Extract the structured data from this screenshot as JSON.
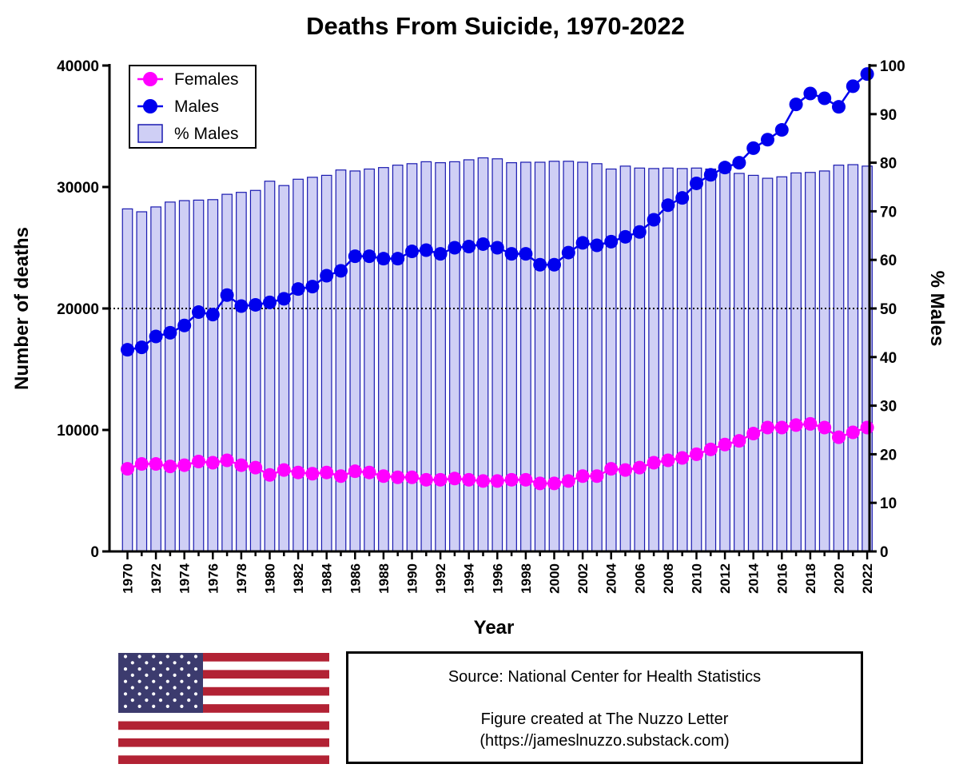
{
  "chart_data": {
    "type": "bar+line",
    "title": "Deaths From Suicide, 1970-2022",
    "xlabel": "Year",
    "ylabel_left": "Number of deaths",
    "ylabel_right": "% Males",
    "ylim_left": [
      0,
      40000
    ],
    "ylim_right": [
      0,
      100
    ],
    "yticks_left": [
      "0",
      "10000",
      "20000",
      "30000",
      "40000"
    ],
    "yticks_right": [
      "0",
      "10",
      "20",
      "30",
      "40",
      "50",
      "60",
      "70",
      "80",
      "90",
      "100"
    ],
    "x": [
      1970,
      1971,
      1972,
      1973,
      1974,
      1975,
      1976,
      1977,
      1978,
      1979,
      1980,
      1981,
      1982,
      1983,
      1984,
      1985,
      1986,
      1987,
      1988,
      1989,
      1990,
      1991,
      1992,
      1993,
      1994,
      1995,
      1996,
      1997,
      1998,
      1999,
      2000,
      2001,
      2002,
      2003,
      2004,
      2005,
      2006,
      2007,
      2008,
      2009,
      2010,
      2011,
      2012,
      2013,
      2014,
      2015,
      2016,
      2017,
      2018,
      2019,
      2020,
      2021,
      2022
    ],
    "xtick_labels": [
      "1970",
      "1972",
      "1974",
      "1976",
      "1978",
      "1980",
      "1982",
      "1984",
      "1986",
      "1988",
      "1990",
      "1992",
      "1994",
      "1996",
      "1998",
      "2000",
      "2002",
      "2004",
      "2006",
      "2008",
      "2010",
      "2012",
      "2014",
      "2016",
      "2018",
      "2020",
      "2022"
    ],
    "reference_line": {
      "axis": "right",
      "value": 50,
      "style": "dotted"
    },
    "series": [
      {
        "name": "Females",
        "type": "line",
        "axis": "left",
        "color": "#ff00ff",
        "values": [
          6800,
          7200,
          7200,
          7000,
          7100,
          7400,
          7300,
          7500,
          7100,
          6900,
          6300,
          6700,
          6500,
          6400,
          6500,
          6200,
          6600,
          6500,
          6200,
          6100,
          6100,
          5900,
          5900,
          6000,
          5900,
          5800,
          5800,
          5900,
          5900,
          5600,
          5600,
          5800,
          6200,
          6200,
          6800,
          6700,
          6900,
          7300,
          7500,
          7700,
          8000,
          8400,
          8800,
          9100,
          9700,
          10200,
          10200,
          10400,
          10500,
          10200,
          9400,
          9800,
          10200
        ]
      },
      {
        "name": "Males",
        "type": "line",
        "axis": "left",
        "color": "#0000ee",
        "values": [
          16600,
          16800,
          17700,
          18000,
          18600,
          19700,
          19500,
          21100,
          20200,
          20300,
          20500,
          20800,
          21600,
          21800,
          22700,
          23100,
          24300,
          24300,
          24100,
          24100,
          24700,
          24800,
          24500,
          25000,
          25100,
          25300,
          25000,
          24500,
          24500,
          23600,
          23600,
          24600,
          25400,
          25200,
          25500,
          25900,
          26300,
          27300,
          28500,
          29100,
          30300,
          31000,
          31600,
          32000,
          33200,
          33900,
          34700,
          36800,
          37700,
          37300,
          36600,
          38300,
          39300
        ]
      },
      {
        "name": "% Males",
        "type": "bar",
        "axis": "right",
        "color": "#cfcff5",
        "edge_color": "#1a1ab0",
        "values": [
          70.5,
          69.9,
          70.9,
          71.9,
          72.2,
          72.3,
          72.4,
          73.5,
          73.9,
          74.3,
          76.2,
          75.3,
          76.6,
          77.0,
          77.4,
          78.5,
          78.3,
          78.7,
          79.0,
          79.5,
          79.8,
          80.2,
          80.0,
          80.2,
          80.6,
          81.0,
          80.8,
          80.0,
          80.1,
          80.1,
          80.3,
          80.3,
          80.1,
          79.8,
          78.7,
          79.3,
          78.9,
          78.8,
          78.9,
          78.8,
          78.9,
          78.7,
          78.5,
          77.8,
          77.4,
          76.8,
          77.1,
          77.9,
          78.0,
          78.3,
          79.5,
          79.6,
          79.3
        ]
      }
    ],
    "legend": {
      "position": "top-left",
      "entries": [
        "Females",
        "Males",
        "% Males"
      ]
    }
  },
  "source": {
    "line1": "Source: National Center for Health Statistics",
    "line2": "Figure created at The Nuzzo Letter",
    "line3": "(https://jameslnuzzo.substack.com)"
  },
  "flag": {
    "name": "us-flag-icon",
    "red": "#b22234",
    "blue": "#3c3b6e",
    "white": "#ffffff"
  }
}
